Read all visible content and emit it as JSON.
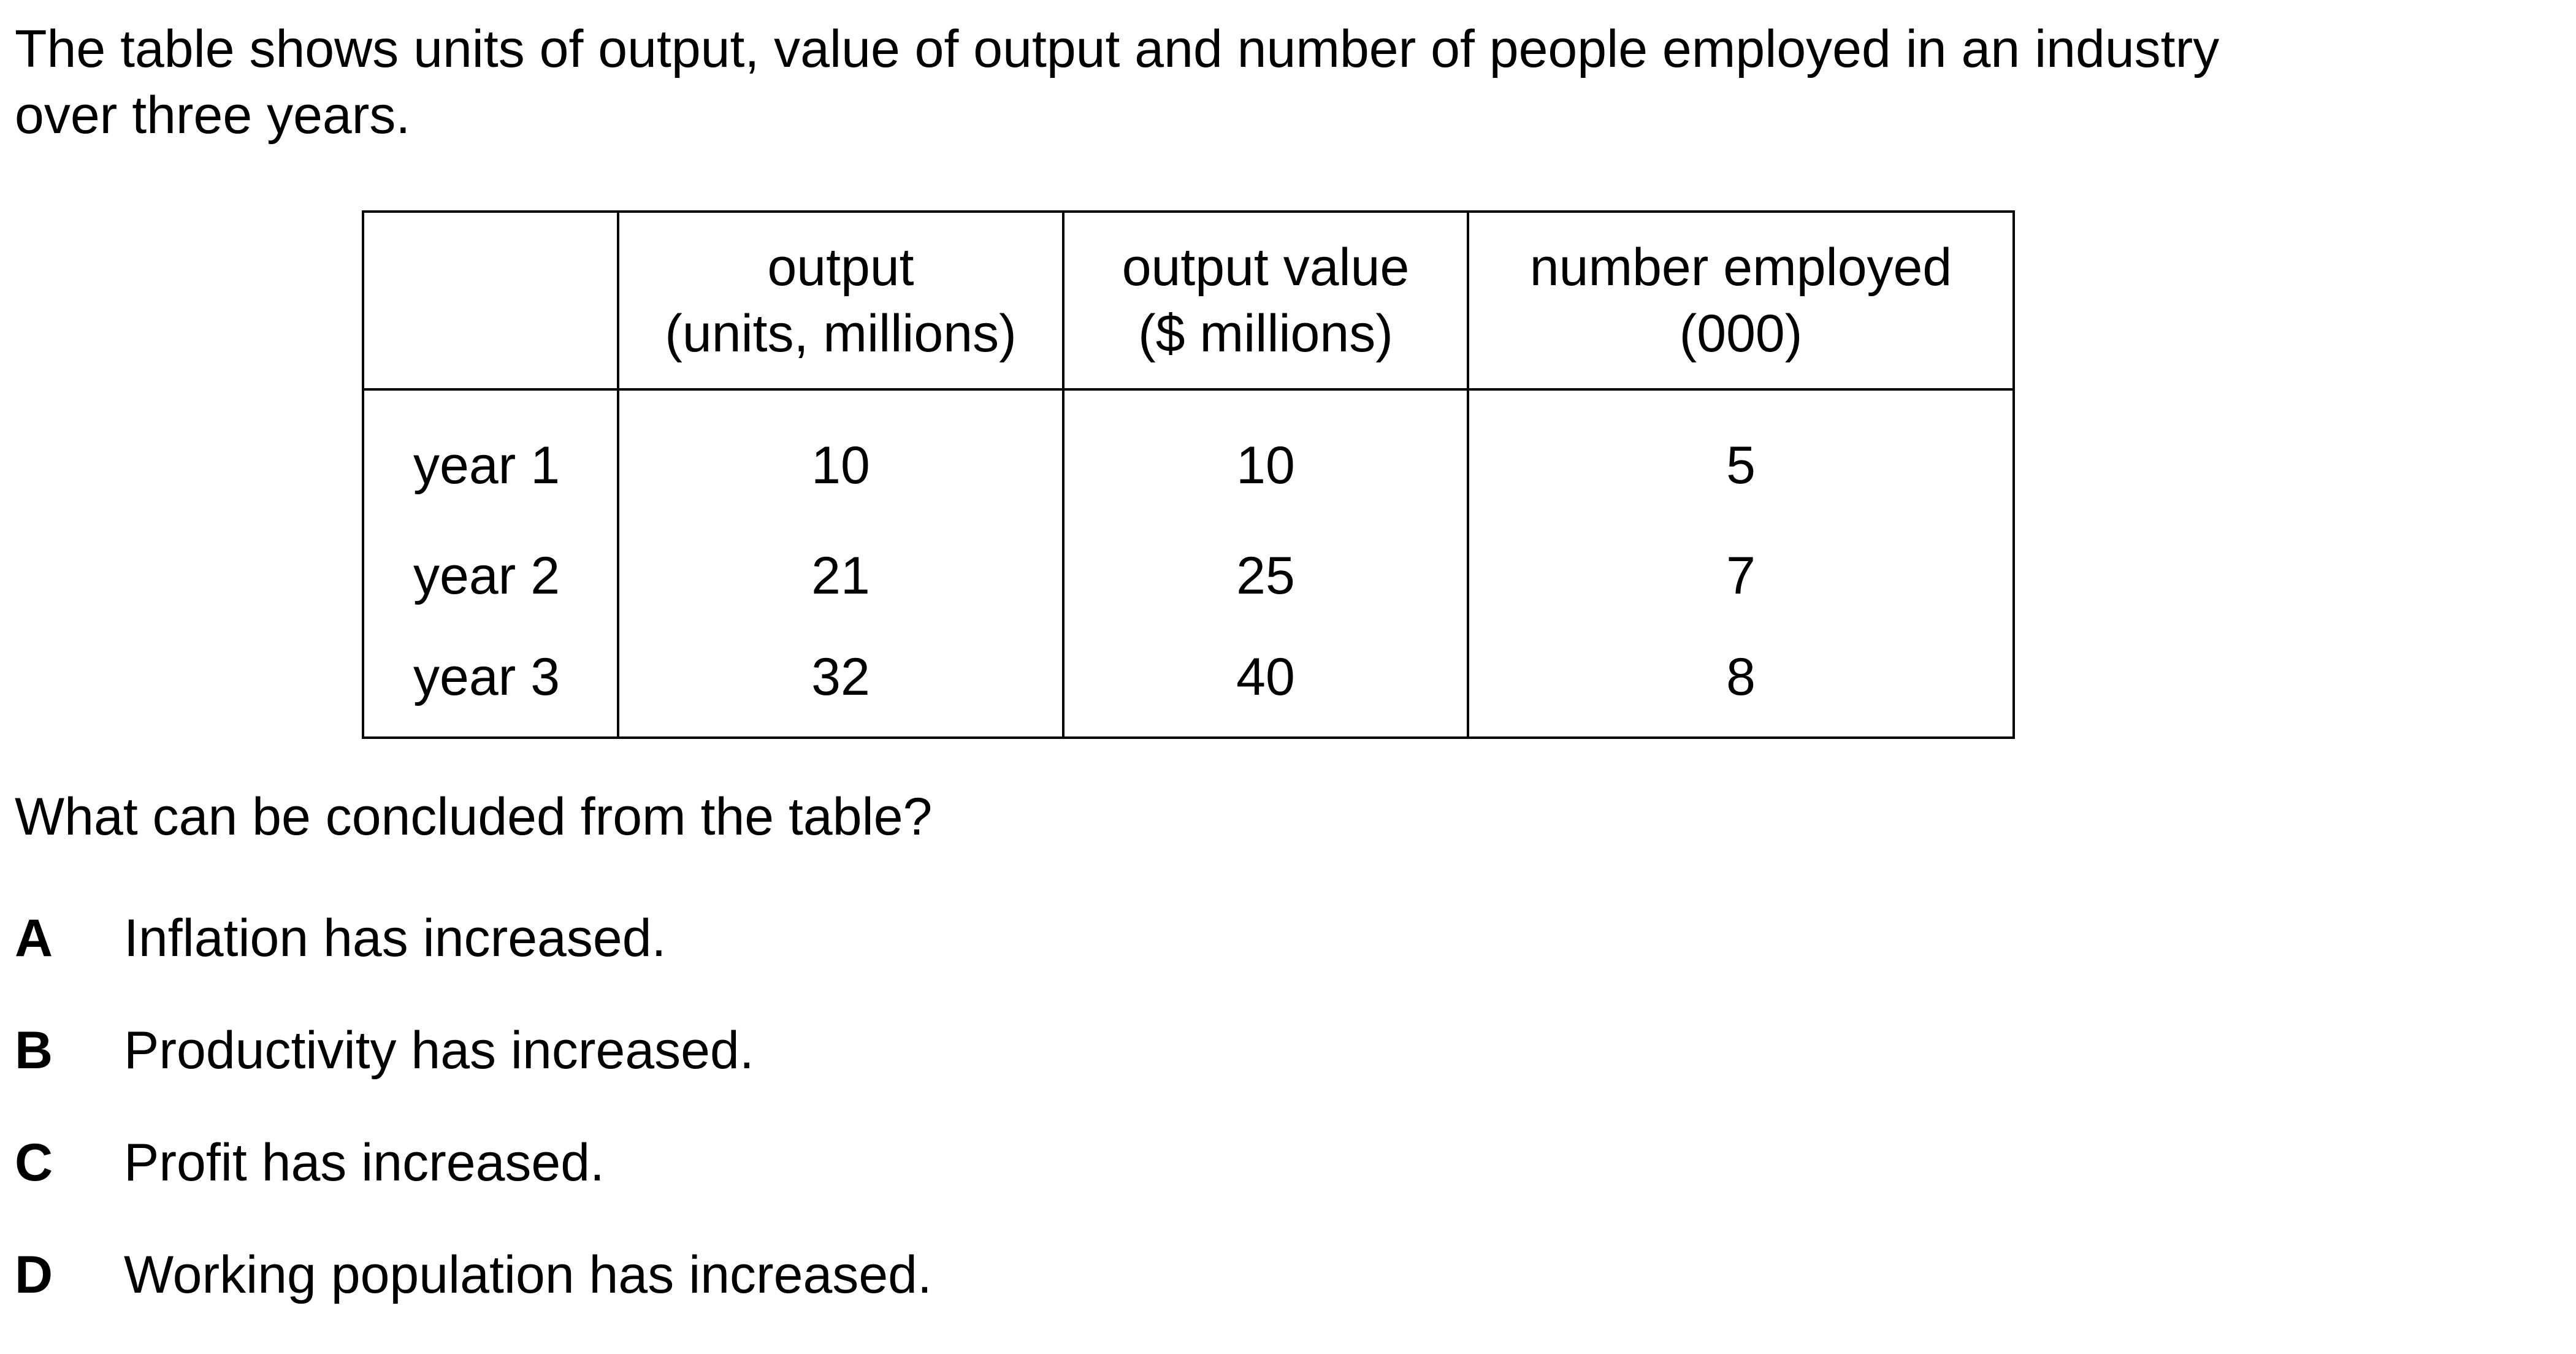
{
  "intro": {
    "line1": "The table shows units of output, value of output and number of people employed in an industry",
    "line2": "over three years."
  },
  "table": {
    "headers": [
      {
        "line1": "",
        "line2": ""
      },
      {
        "line1": "output",
        "line2": "(units, millions)"
      },
      {
        "line1": "output value",
        "line2": "($ millions)"
      },
      {
        "line1": "number employed",
        "line2": "(000)"
      }
    ],
    "rows": [
      {
        "label": "year 1",
        "output": "10",
        "output_value": "10",
        "number_employed": "5"
      },
      {
        "label": "year 2",
        "output": "21",
        "output_value": "25",
        "number_employed": "7"
      },
      {
        "label": "year 3",
        "output": "32",
        "output_value": "40",
        "number_employed": "8"
      }
    ]
  },
  "question": "What can be concluded from the table?",
  "options": [
    {
      "letter": "A",
      "text": "Inflation has increased."
    },
    {
      "letter": "B",
      "text": "Productivity has increased."
    },
    {
      "letter": "C",
      "text": "Profit has increased."
    },
    {
      "letter": "D",
      "text": "Working population has increased."
    }
  ]
}
